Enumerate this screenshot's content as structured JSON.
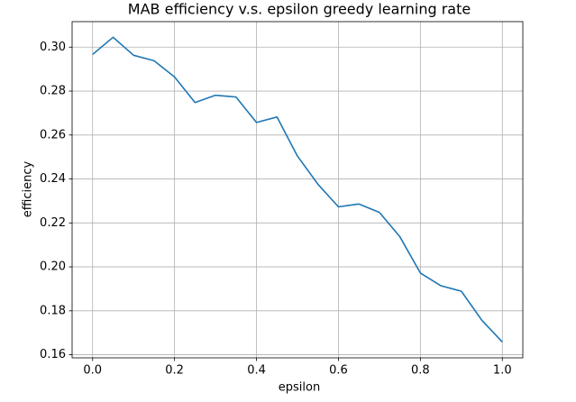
{
  "chart_data": {
    "type": "line",
    "title": "MAB efficiency v.s. epsilon greedy learning rate",
    "x_label": "epsilon",
    "y_label": "efficiency",
    "x": [
      0.0,
      0.05,
      0.1,
      0.15,
      0.2,
      0.25,
      0.3,
      0.35,
      0.4,
      0.45,
      0.5,
      0.55,
      0.6,
      0.65,
      0.7,
      0.75,
      0.8,
      0.85,
      0.9,
      0.95,
      1.0
    ],
    "values": [
      0.2967,
      0.3045,
      0.2963,
      0.2938,
      0.2864,
      0.2748,
      0.2781,
      0.2773,
      0.2657,
      0.2682,
      0.2504,
      0.2376,
      0.2273,
      0.2286,
      0.2248,
      0.2137,
      0.1972,
      0.1914,
      0.1889,
      0.1757,
      0.1658
    ],
    "color": "#1f77b4",
    "xlim": [
      -0.05,
      1.05
    ],
    "xticks": [
      {
        "value": 0,
        "label": "0.0"
      },
      0.2,
      0.4,
      0.6,
      0.8,
      {
        "value": 1,
        "label": "1.0"
      }
    ],
    "ylim": [
      0.1586,
      0.3116
    ],
    "yticks": [
      0.16,
      0.18,
      {
        "value": 0.2,
        "label": "0.20"
      },
      0.22,
      0.24,
      0.26,
      0.28,
      {
        "value": 0.3,
        "label": "0.30"
      }
    ],
    "grid": true
  }
}
